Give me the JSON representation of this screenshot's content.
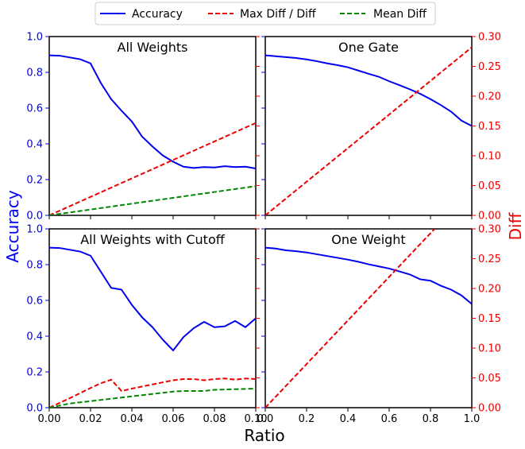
{
  "legend": {
    "placement": "top-center",
    "entries": [
      {
        "label": "Accuracy",
        "color": "#0000ee",
        "style": "solid"
      },
      {
        "label": "Max Diff / Diff",
        "color": "#ee0000",
        "style": "dashed"
      },
      {
        "label": "Mean Diff",
        "color": "#008800",
        "style": "dashed"
      }
    ]
  },
  "axis_labels": {
    "left": "Accuracy",
    "right": "Diff",
    "bottom": "Ratio"
  },
  "colors": {
    "accuracy": "#0000ee",
    "diff": "#ee0000",
    "mean": "#008800"
  },
  "chart_data": [
    {
      "type": "line",
      "title": "All Weights",
      "xlim": [
        0.0,
        0.1
      ],
      "ylim": [
        0.0,
        1.0
      ],
      "y2lim": [
        0.0,
        0.3
      ],
      "series": [
        {
          "name": "Accuracy",
          "axis": "left",
          "x": [
            0.0,
            0.005,
            0.01,
            0.015,
            0.02,
            0.025,
            0.03,
            0.035,
            0.04,
            0.045,
            0.05,
            0.055,
            0.06,
            0.065,
            0.07,
            0.075,
            0.08,
            0.085,
            0.09,
            0.095,
            0.1
          ],
          "y": [
            0.895,
            0.893,
            0.883,
            0.873,
            0.85,
            0.74,
            0.65,
            0.585,
            0.525,
            0.44,
            0.385,
            0.335,
            0.3,
            0.272,
            0.265,
            0.27,
            0.268,
            0.275,
            0.27,
            0.272,
            0.262
          ]
        },
        {
          "name": "Max Diff / Diff",
          "axis": "right",
          "x": [
            0.0,
            0.1
          ],
          "y": [
            0.0,
            0.155
          ]
        },
        {
          "name": "Mean Diff",
          "axis": "right",
          "x": [
            0.0,
            0.1
          ],
          "y": [
            0.0,
            0.049
          ]
        }
      ]
    },
    {
      "type": "line",
      "title": "One Gate",
      "xlim": [
        0.0,
        1.0
      ],
      "ylim": [
        0.0,
        1.0
      ],
      "y2lim": [
        0.0,
        0.3
      ],
      "series": [
        {
          "name": "Accuracy",
          "axis": "left",
          "x": [
            0.0,
            0.05,
            0.1,
            0.15,
            0.2,
            0.25,
            0.3,
            0.35,
            0.4,
            0.45,
            0.5,
            0.55,
            0.6,
            0.65,
            0.7,
            0.75,
            0.8,
            0.85,
            0.9,
            0.95,
            1.0
          ],
          "y": [
            0.895,
            0.89,
            0.885,
            0.88,
            0.872,
            0.862,
            0.85,
            0.84,
            0.828,
            0.81,
            0.792,
            0.775,
            0.75,
            0.728,
            0.705,
            0.68,
            0.65,
            0.617,
            0.58,
            0.53,
            0.5
          ]
        },
        {
          "name": "Max Diff / Diff",
          "axis": "right",
          "x": [
            0.0,
            1.0
          ],
          "y": [
            0.0,
            0.282
          ]
        }
      ]
    },
    {
      "type": "line",
      "title": "All Weights with Cutoff",
      "xlim": [
        0.0,
        0.1
      ],
      "ylim": [
        0.0,
        1.0
      ],
      "y2lim": [
        0.0,
        0.3
      ],
      "series": [
        {
          "name": "Accuracy",
          "axis": "left",
          "x": [
            0.0,
            0.005,
            0.01,
            0.015,
            0.02,
            0.025,
            0.03,
            0.035,
            0.04,
            0.045,
            0.05,
            0.055,
            0.06,
            0.065,
            0.07,
            0.075,
            0.08,
            0.085,
            0.09,
            0.095,
            0.1
          ],
          "y": [
            0.895,
            0.893,
            0.883,
            0.873,
            0.85,
            0.76,
            0.67,
            0.66,
            0.575,
            0.505,
            0.45,
            0.38,
            0.32,
            0.395,
            0.445,
            0.48,
            0.45,
            0.455,
            0.485,
            0.45,
            0.5
          ]
        },
        {
          "name": "Max Diff / Diff",
          "axis": "right",
          "x": [
            0.0,
            0.01,
            0.02,
            0.025,
            0.03,
            0.035,
            0.04,
            0.05,
            0.06,
            0.065,
            0.07,
            0.075,
            0.08,
            0.085,
            0.09,
            0.095,
            0.1
          ],
          "y": [
            0.0,
            0.016,
            0.033,
            0.041,
            0.047,
            0.028,
            0.032,
            0.039,
            0.046,
            0.048,
            0.048,
            0.046,
            0.048,
            0.049,
            0.047,
            0.049,
            0.048
          ]
        },
        {
          "name": "Mean Diff",
          "axis": "right",
          "x": [
            0.0,
            0.01,
            0.02,
            0.03,
            0.04,
            0.05,
            0.06,
            0.065,
            0.07,
            0.075,
            0.08,
            0.09,
            0.1
          ],
          "y": [
            0.0,
            0.007,
            0.011,
            0.015,
            0.019,
            0.023,
            0.027,
            0.028,
            0.028,
            0.028,
            0.03,
            0.031,
            0.032
          ]
        }
      ]
    },
    {
      "type": "line",
      "title": "One Weight",
      "xlim": [
        0.0,
        1.0
      ],
      "ylim": [
        0.0,
        1.0
      ],
      "y2lim": [
        0.0,
        0.3
      ],
      "series": [
        {
          "name": "Accuracy",
          "axis": "left",
          "x": [
            0.0,
            0.05,
            0.1,
            0.15,
            0.2,
            0.25,
            0.3,
            0.35,
            0.4,
            0.45,
            0.5,
            0.55,
            0.6,
            0.65,
            0.7,
            0.75,
            0.8,
            0.85,
            0.9,
            0.95,
            1.0
          ],
          "y": [
            0.895,
            0.89,
            0.88,
            0.875,
            0.868,
            0.858,
            0.848,
            0.838,
            0.828,
            0.816,
            0.802,
            0.79,
            0.778,
            0.762,
            0.745,
            0.718,
            0.71,
            0.682,
            0.66,
            0.628,
            0.58
          ]
        },
        {
          "name": "Max Diff / Diff",
          "axis": "right",
          "x": [
            0.0,
            0.82
          ],
          "y": [
            0.0,
            0.3
          ]
        }
      ]
    }
  ],
  "ticks": {
    "x_small": [
      "0.00",
      "0.02",
      "0.04",
      "0.06",
      "0.08",
      "0.10"
    ],
    "x_small_values": [
      0.0,
      0.02,
      0.04,
      0.06,
      0.08,
      0.1
    ],
    "x_large": [
      "0.0",
      "0.2",
      "0.4",
      "0.6",
      "0.8",
      "1.0"
    ],
    "x_large_values": [
      0.0,
      0.2,
      0.4,
      0.6,
      0.8,
      1.0
    ],
    "y_left": [
      "0.0",
      "0.2",
      "0.4",
      "0.6",
      "0.8",
      "1.0"
    ],
    "y_left_values": [
      0.0,
      0.2,
      0.4,
      0.6,
      0.8,
      1.0
    ],
    "y_right": [
      "0.00",
      "0.05",
      "0.10",
      "0.15",
      "0.20",
      "0.25",
      "0.30"
    ],
    "y_right_values": [
      0.0,
      0.05,
      0.1,
      0.15,
      0.2,
      0.25,
      0.3
    ]
  }
}
